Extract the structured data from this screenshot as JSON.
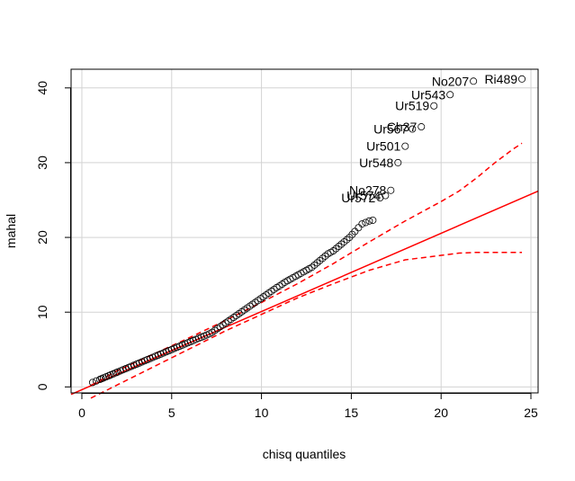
{
  "chart_data": {
    "type": "scatter",
    "title": "",
    "xlabel": "chisq quantiles",
    "ylabel": "mahal",
    "xlim": [
      -0.6,
      25.4
    ],
    "ylim": [
      -0.8,
      42.5
    ],
    "x_ticks": [
      0,
      5,
      10,
      15,
      20,
      25
    ],
    "y_ticks": [
      0,
      10,
      20,
      30,
      40
    ],
    "grid": true,
    "colors": {
      "points": "#000000",
      "reference": "#ff0000",
      "grid": "#d3d3d3"
    },
    "reference_line": {
      "x": [
        -0.6,
        25.4
      ],
      "y": [
        -1.0,
        26.2
      ]
    },
    "envelope_upper": {
      "x": [
        0.5,
        2,
        4,
        6,
        8,
        10,
        12,
        14,
        16,
        18,
        20,
        21,
        22,
        23,
        24,
        24.5
      ],
      "y": [
        0.2,
        2.2,
        4.4,
        6.6,
        8.9,
        11.3,
        13.8,
        16.5,
        19.4,
        22.2,
        24.8,
        26.2,
        28.0,
        30.0,
        31.8,
        32.6
      ]
    },
    "envelope_lower": {
      "x": [
        0.5,
        2,
        4,
        6,
        8,
        10,
        12,
        14,
        16,
        18,
        20,
        21,
        22,
        23,
        24,
        24.5
      ],
      "y": [
        -1.5,
        0.3,
        2.7,
        5.1,
        7.5,
        9.7,
        11.9,
        13.8,
        15.6,
        17.0,
        17.6,
        17.9,
        18.0,
        18.0,
        18.0,
        18.0
      ]
    },
    "points_x": [
      0.6,
      0.8,
      1.0,
      1.1,
      1.2,
      1.35,
      1.5,
      1.6,
      1.75,
      1.9,
      2.0,
      2.15,
      2.3,
      2.45,
      2.6,
      2.75,
      2.9,
      3.05,
      3.2,
      3.35,
      3.5,
      3.65,
      3.8,
      3.95,
      4.1,
      4.25,
      4.4,
      4.55,
      4.7,
      4.85,
      5.0,
      5.15,
      5.3,
      5.45,
      5.6,
      5.75,
      5.9,
      6.05,
      6.2,
      6.35,
      6.5,
      6.65,
      6.8,
      6.95,
      7.1,
      7.25,
      7.4,
      7.55,
      7.7,
      7.85,
      8.0,
      8.15,
      8.3,
      8.45,
      8.6,
      8.75,
      8.9,
      9.05,
      9.2,
      9.35,
      9.5,
      9.65,
      9.8,
      9.95,
      10.1,
      10.25,
      10.4,
      10.55,
      10.7,
      10.85,
      11.0,
      11.15,
      11.3,
      11.45,
      11.6,
      11.75,
      11.9,
      12.05,
      12.2,
      12.35,
      12.5,
      12.65,
      12.8,
      12.95,
      13.1,
      13.25,
      13.4,
      13.55,
      13.7,
      13.85,
      14.0,
      14.15,
      14.3,
      14.45,
      14.6,
      14.75,
      14.9,
      15.05,
      15.2,
      15.4,
      15.6,
      15.8,
      16.0,
      16.2
    ],
    "points_y": [
      0.6,
      0.8,
      1.0,
      1.1,
      1.2,
      1.35,
      1.5,
      1.6,
      1.75,
      1.9,
      2.0,
      2.15,
      2.3,
      2.45,
      2.6,
      2.75,
      2.9,
      3.05,
      3.2,
      3.35,
      3.5,
      3.65,
      3.8,
      3.95,
      4.1,
      4.25,
      4.4,
      4.55,
      4.7,
      4.85,
      5.0,
      5.15,
      5.3,
      5.45,
      5.6,
      5.75,
      5.9,
      6.05,
      6.2,
      6.35,
      6.5,
      6.65,
      6.8,
      6.95,
      7.1,
      7.3,
      7.55,
      7.8,
      8.05,
      8.3,
      8.55,
      8.8,
      9.05,
      9.3,
      9.55,
      9.8,
      10.05,
      10.3,
      10.55,
      10.8,
      11.05,
      11.3,
      11.55,
      11.8,
      12.05,
      12.3,
      12.55,
      12.8,
      13.05,
      13.3,
      13.5,
      13.75,
      14.0,
      14.2,
      14.4,
      14.6,
      14.8,
      15.0,
      15.2,
      15.4,
      15.6,
      15.8,
      16.0,
      16.3,
      16.6,
      16.9,
      17.2,
      17.5,
      17.8,
      18.0,
      18.2,
      18.5,
      18.8,
      19.1,
      19.4,
      19.7,
      20.0,
      20.4,
      20.8,
      21.3,
      21.8,
      22.0,
      22.2,
      22.3
    ],
    "labeled_points": [
      {
        "label": "Ur572",
        "x": 16.6,
        "y": 25.3
      },
      {
        "label": "Ur574",
        "x": 16.9,
        "y": 25.6
      },
      {
        "label": "No278",
        "x": 17.2,
        "y": 26.3
      },
      {
        "label": "Ur548",
        "x": 17.6,
        "y": 30.0
      },
      {
        "label": "Ur501",
        "x": 18.0,
        "y": 32.2
      },
      {
        "label": "Ur567",
        "x": 18.4,
        "y": 34.5
      },
      {
        "label": "Ch37",
        "x": 18.9,
        "y": 34.8
      },
      {
        "label": "Ur519",
        "x": 19.6,
        "y": 37.6
      },
      {
        "label": "Ur543",
        "x": 20.5,
        "y": 39.1
      },
      {
        "label": "No207",
        "x": 21.8,
        "y": 40.9
      },
      {
        "label": "Ri489",
        "x": 24.5,
        "y": 41.2
      }
    ]
  }
}
